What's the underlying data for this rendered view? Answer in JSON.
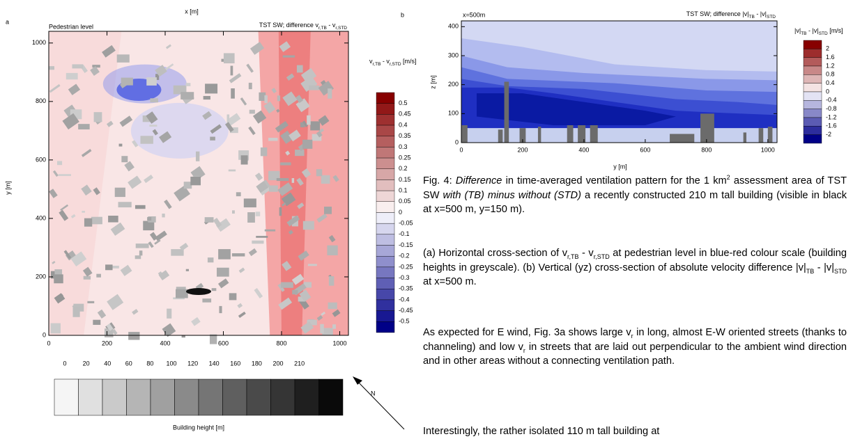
{
  "panel_a": {
    "letter": "a",
    "x_label": "x [m]",
    "y_label": "y [m]",
    "title_left": "Pedestrian level",
    "title_right": [
      {
        "t": "TST SW; difference v"
      },
      {
        "sub": "r,TB"
      },
      {
        "t": " - v"
      },
      {
        "sub": "r,STD"
      }
    ],
    "xticks": [
      0,
      200,
      400,
      600,
      800,
      1000
    ],
    "yticks": [
      0,
      200,
      400,
      600,
      800,
      1000
    ],
    "xlim": [
      0,
      1030
    ],
    "ylim": [
      0,
      1040
    ],
    "colorbar": {
      "title": [
        {
          "t": "v"
        },
        {
          "sub": "r,TB"
        },
        {
          "t": " - v"
        },
        {
          "sub": "r,STD"
        },
        {
          "t": " [m/s]"
        }
      ],
      "ticks": [
        0.5,
        0.45,
        0.4,
        0.35,
        0.3,
        0.25,
        0.2,
        0.15,
        0.1,
        0.05,
        0,
        -0.05,
        -0.1,
        -0.15,
        -0.2,
        -0.25,
        -0.3,
        -0.35,
        -0.4,
        -0.45,
        -0.5
      ]
    },
    "height_bar": {
      "title": "Building height [m]",
      "ticks": [
        0,
        20,
        40,
        60,
        80,
        100,
        120,
        140,
        160,
        180,
        200,
        210
      ]
    },
    "north": "N"
  },
  "panel_b": {
    "letter": "b",
    "x_label": "y [m]",
    "y_label": "z [m]",
    "title_left": "x=500m",
    "title_right": [
      {
        "t": "TST SW; difference |v|"
      },
      {
        "sub": "TB"
      },
      {
        "t": " - |v|"
      },
      {
        "sub": "STD"
      }
    ],
    "xticks": [
      0,
      200,
      400,
      600,
      800,
      1000
    ],
    "yticks": [
      0,
      100,
      200,
      300,
      400
    ],
    "xlim": [
      0,
      1030
    ],
    "ylim": [
      0,
      420
    ],
    "colorbar": {
      "title": [
        {
          "t": "|v|"
        },
        {
          "sub": "TB"
        },
        {
          "t": " - |v|"
        },
        {
          "sub": "STD"
        },
        {
          "t": " [m/s]"
        }
      ],
      "ticks": [
        2,
        1.6,
        1.2,
        0.8,
        0.4,
        0,
        -0.4,
        -0.8,
        -1.2,
        -1.6,
        -2
      ]
    }
  },
  "caption": [
    [
      {
        "t": "Fig. 4: "
      },
      {
        "i": "Difference"
      },
      {
        "t": " in time-averaged ventilation pattern for the 1 km"
      },
      {
        "sup": "2"
      },
      {
        "t": " assessment area of TST SW "
      },
      {
        "i": "with (TB) minus without (STD)"
      },
      {
        "t": " a recently constructed 210 m tall building (visible in black at x=500 m, y=150 m)."
      }
    ],
    [
      {
        "t": "(a) Horizontal cross-section of v"
      },
      {
        "sub": "r,TB"
      },
      {
        "t": " - v"
      },
      {
        "sub": "r,STD"
      },
      {
        "t": " at pedestrian level in blue-red colour scale (building heights in greyscale). (b) Vertical (yz) cross-section of absolute velocity difference |v|"
      },
      {
        "sub": "TB"
      },
      {
        "t": " - |v|"
      },
      {
        "sub": "STD"
      },
      {
        "t": " at x=500 m."
      }
    ]
  ],
  "body": [
    [
      {
        "t": "As expected for E wind, Fig. 3a shows large v"
      },
      {
        "sub": "r"
      },
      {
        "t": " in long, almost E-W oriented streets (thanks to channeling) and low v"
      },
      {
        "sub": "r"
      },
      {
        "t": " in streets that are laid out perpendicular to the ambient wind direction and in other areas without a connecting ventilation path."
      }
    ],
    [
      {
        "t": "Interestingly, the rather isolated 110 m tall building at"
      }
    ]
  ]
}
